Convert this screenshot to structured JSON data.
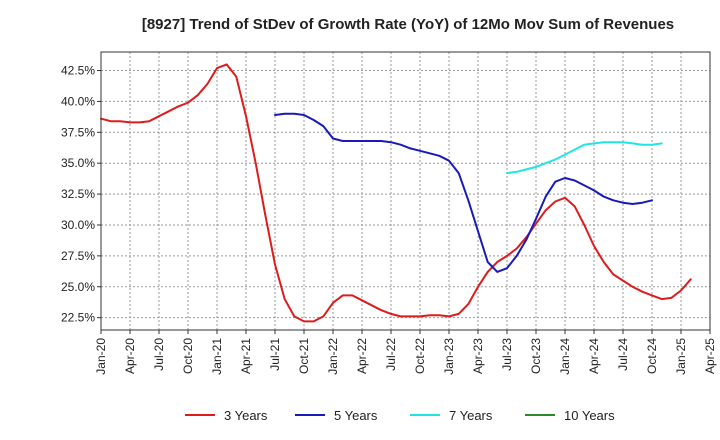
{
  "chart_data": {
    "type": "line",
    "title": "[8927]  Trend of StDev of Growth Rate (YoY) of 12Mo Mov Sum of Revenues",
    "xlabel": "",
    "ylabel": "",
    "x_start": "Jan-20",
    "x_step_months": 1,
    "x_ticks": [
      "Jan-20",
      "Apr-20",
      "Jul-20",
      "Oct-20",
      "Jan-21",
      "Apr-21",
      "Jul-21",
      "Oct-21",
      "Jan-22",
      "Apr-22",
      "Jul-22",
      "Oct-22",
      "Jan-23",
      "Apr-23",
      "Jul-23",
      "Oct-23",
      "Jan-24",
      "Apr-24",
      "Jul-24",
      "Oct-24",
      "Jan-25",
      "Apr-25"
    ],
    "y_ticks": [
      "22.5%",
      "25.0%",
      "27.5%",
      "30.0%",
      "32.5%",
      "35.0%",
      "37.5%",
      "40.0%",
      "42.5%"
    ],
    "y_tick_values": [
      22.5,
      25.0,
      27.5,
      30.0,
      32.5,
      35.0,
      37.5,
      40.0,
      42.5
    ],
    "ylim": [
      21.5,
      44.0
    ],
    "xlim_months": [
      0,
      63
    ],
    "grid": true,
    "legend_position": "bottom",
    "series": [
      {
        "name": "3 Years",
        "color": "#dd1c1c",
        "start_index": 0,
        "values": [
          38.6,
          38.4,
          38.4,
          38.3,
          38.3,
          38.4,
          38.8,
          39.2,
          39.6,
          39.9,
          40.5,
          41.4,
          42.7,
          43.0,
          42.0,
          38.8,
          35.0,
          30.8,
          26.8,
          24.0,
          22.6,
          22.2,
          22.2,
          22.6,
          23.7,
          24.3,
          24.3,
          23.9,
          23.5,
          23.1,
          22.8,
          22.6,
          22.6,
          22.6,
          22.7,
          22.7,
          22.6,
          22.8,
          23.6,
          25.0,
          26.2,
          27.0,
          27.5,
          28.1,
          29.0,
          30.1,
          31.2,
          31.9,
          32.2,
          31.5,
          30.0,
          28.3,
          27.0,
          26.0,
          25.5,
          25.0,
          24.6,
          24.3,
          24.0,
          24.1,
          24.7,
          25.6
        ]
      },
      {
        "name": "5 Years",
        "color": "#1a1ab8",
        "start_index": 18,
        "values": [
          38.9,
          39.0,
          39.0,
          38.9,
          38.5,
          38.0,
          37.0,
          36.8,
          36.8,
          36.8,
          36.8,
          36.8,
          36.7,
          36.5,
          36.2,
          36.0,
          35.8,
          35.6,
          35.2,
          34.2,
          32.0,
          29.5,
          27.0,
          26.2,
          26.5,
          27.5,
          28.8,
          30.5,
          32.3,
          33.5,
          33.8,
          33.6,
          33.2,
          32.8,
          32.3,
          32.0,
          31.8,
          31.7,
          31.8,
          32.0
        ]
      },
      {
        "name": "7 Years",
        "color": "#22e4e4",
        "start_index": 42,
        "values": [
          34.2,
          34.3,
          34.5,
          34.7,
          35.0,
          35.3,
          35.7,
          36.1,
          36.5,
          36.6,
          36.7,
          36.7,
          36.7,
          36.6,
          36.5,
          36.5,
          36.6
        ]
      },
      {
        "name": "10 Years",
        "color": "#2a8a2a",
        "start_index": 0,
        "values": []
      }
    ]
  }
}
